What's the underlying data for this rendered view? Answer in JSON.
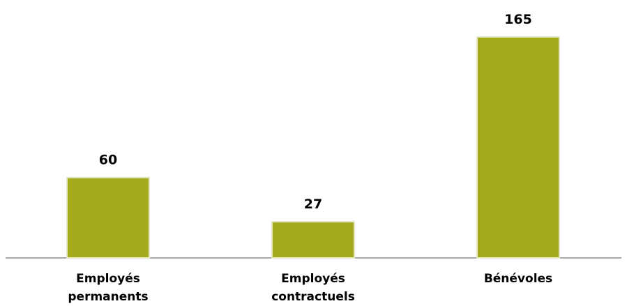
{
  "chart_data": {
    "type": "bar",
    "categories": [
      [
        "Employés",
        "permanents"
      ],
      [
        "Employés",
        "contractuels"
      ],
      [
        "Bénévoles"
      ]
    ],
    "values": [
      60,
      27,
      165
    ],
    "data_labels": [
      "60",
      "27",
      "165"
    ],
    "title": "",
    "xlabel": "",
    "ylabel": "",
    "ylim": [
      0,
      165
    ],
    "grid": false,
    "legend": "none",
    "y_axis_visible": false,
    "bar_color": "#a3aa1c",
    "axis_color": "#8c8c8c"
  }
}
